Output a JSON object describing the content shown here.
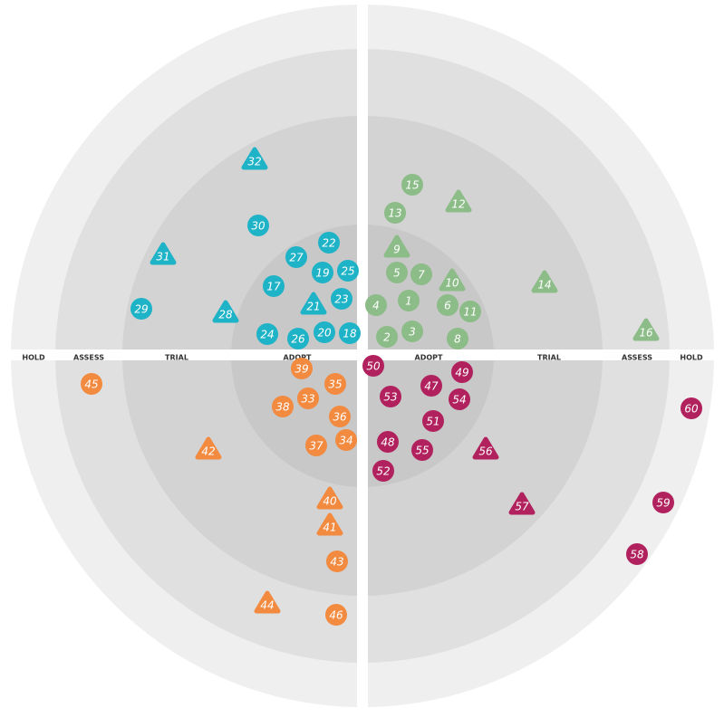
{
  "ring_labels": [
    "ADOPT",
    "TRIAL",
    "ASSESS",
    "HOLD"
  ],
  "quadrants": [
    {
      "color": "#8cbc87",
      "blips": [
        15,
        12,
        13,
        9,
        5,
        7,
        10,
        14,
        4,
        1,
        6,
        11,
        16,
        2,
        3,
        8
      ]
    },
    {
      "color": "#1fb3c7",
      "blips": [
        32,
        30,
        22,
        31,
        27,
        19,
        25,
        17,
        21,
        23,
        29,
        28,
        24,
        26,
        20,
        18
      ]
    },
    {
      "color": "#f28a3f",
      "blips": [
        39,
        45,
        35,
        33,
        38,
        36,
        34,
        37,
        42,
        40,
        41,
        43,
        44,
        46
      ]
    },
    {
      "color": "#b0215d",
      "blips": [
        50,
        49,
        47,
        53,
        54,
        60,
        51,
        48,
        55,
        56,
        52,
        57,
        59,
        58
      ]
    }
  ]
}
